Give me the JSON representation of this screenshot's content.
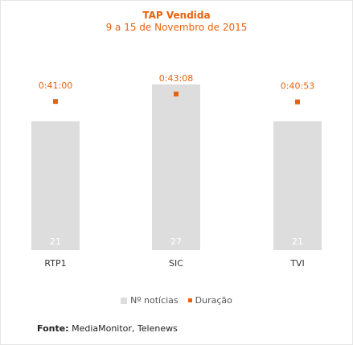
{
  "chart_data": {
    "type": "bar",
    "title": "TAP Vendida",
    "subtitle": "9 a 15 de Novembro de 2015",
    "categories": [
      "RTP1",
      "SIC",
      "TVI"
    ],
    "series": [
      {
        "name": "Nº notícias",
        "values": [
          21,
          27,
          21
        ],
        "color": "#dddddd"
      },
      {
        "name": "Duração",
        "values": [
          "0:41:00",
          "0:43:08",
          "0:40:53"
        ],
        "seconds": [
          2460,
          2588,
          2453
        ],
        "color": "#e8620e"
      }
    ],
    "ylim": [
      0,
      27
    ],
    "grid": false,
    "legend_position": "bottom-center"
  },
  "legend": {
    "bars_label": "Nº notícias",
    "points_label": "Duração"
  },
  "source": {
    "label": "Fonte:",
    "text": "MediaMonitor, Telenews"
  }
}
